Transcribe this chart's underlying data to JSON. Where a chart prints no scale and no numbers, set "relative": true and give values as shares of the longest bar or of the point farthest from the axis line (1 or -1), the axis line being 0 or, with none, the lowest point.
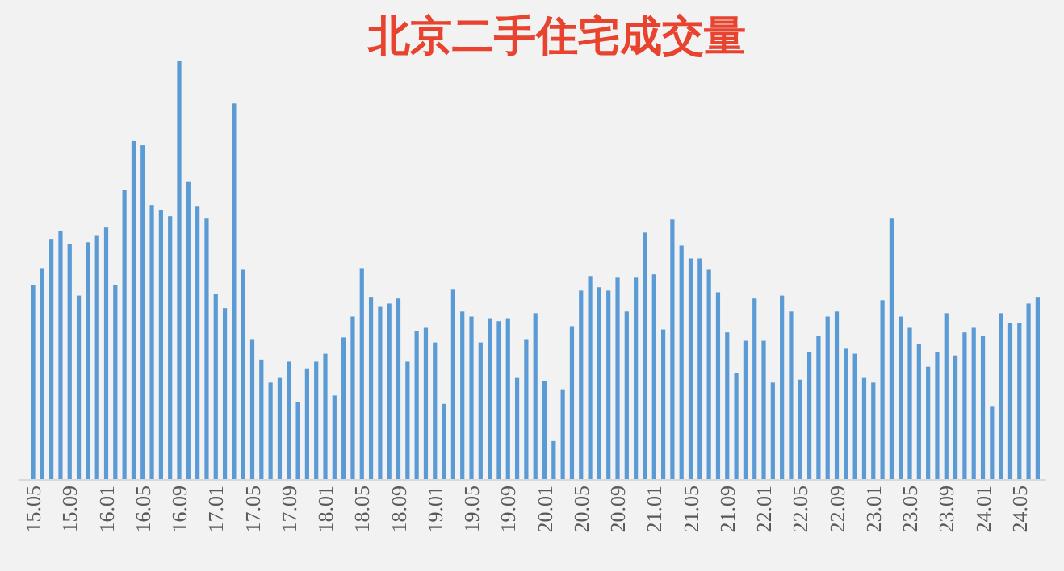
{
  "chart_data": {
    "type": "bar",
    "title": "北京二手住宅成交量",
    "relative": true,
    "color": "#5b9bd5",
    "categories": [
      "15.05",
      null,
      null,
      null,
      "15.09",
      null,
      null,
      null,
      "16.01",
      null,
      null,
      null,
      "16.05",
      null,
      null,
      null,
      "16.09",
      null,
      null,
      null,
      "17.01",
      null,
      null,
      null,
      "17.05",
      null,
      null,
      null,
      "17.09",
      null,
      null,
      null,
      "18.01",
      null,
      null,
      null,
      "18.05",
      null,
      null,
      null,
      "18.09",
      null,
      null,
      null,
      "19.01",
      null,
      null,
      null,
      "19.05",
      null,
      null,
      null,
      "19.09",
      null,
      null,
      null,
      "20.01",
      null,
      null,
      null,
      "20.05",
      null,
      null,
      null,
      "20.09",
      null,
      null,
      null,
      "21.01",
      null,
      null,
      null,
      "21.05",
      null,
      null,
      null,
      "21.09",
      null,
      null,
      null,
      "22.01",
      null,
      null,
      null,
      "22.05",
      null,
      null,
      null,
      "22.09",
      null,
      null,
      null,
      "23.01",
      null,
      null,
      null,
      "23.05",
      null,
      null,
      null,
      "23.09",
      null,
      null,
      null,
      "24.01",
      null,
      null,
      null,
      "24.05",
      null,
      null
    ],
    "values": [
      0.464,
      0.505,
      0.575,
      0.593,
      0.563,
      0.439,
      0.567,
      0.582,
      0.602,
      0.464,
      0.692,
      0.809,
      0.799,
      0.656,
      0.644,
      0.629,
      1,
      0.711,
      0.652,
      0.625,
      0.443,
      0.409,
      0.899,
      0.501,
      0.335,
      0.286,
      0.231,
      0.242,
      0.281,
      0.184,
      0.265,
      0.281,
      0.3,
      0.2,
      0.339,
      0.389,
      0.505,
      0.436,
      0.412,
      0.42,
      0.432,
      0.281,
      0.354,
      0.362,
      0.327,
      0.18,
      0.455,
      0.401,
      0.389,
      0.327,
      0.385,
      0.378,
      0.385,
      0.242,
      0.335,
      0.397,
      0.235,
      0.091,
      0.215,
      0.366,
      0.451,
      0.486,
      0.459,
      0.451,
      0.482,
      0.401,
      0.482,
      0.59,
      0.49,
      0.358,
      0.621,
      0.559,
      0.528,
      0.528,
      0.501,
      0.447,
      0.351,
      0.254,
      0.331,
      0.432,
      0.331,
      0.231,
      0.439,
      0.401,
      0.238,
      0.304,
      0.343,
      0.389,
      0.401,
      0.312,
      0.3,
      0.242,
      0.231,
      0.428,
      0.625,
      0.389,
      0.362,
      0.323,
      0.269,
      0.304,
      0.397,
      0.296,
      0.351,
      0.362,
      0.343,
      0.173,
      0.397,
      0.374,
      0.374,
      0.42,
      0.436
    ]
  }
}
